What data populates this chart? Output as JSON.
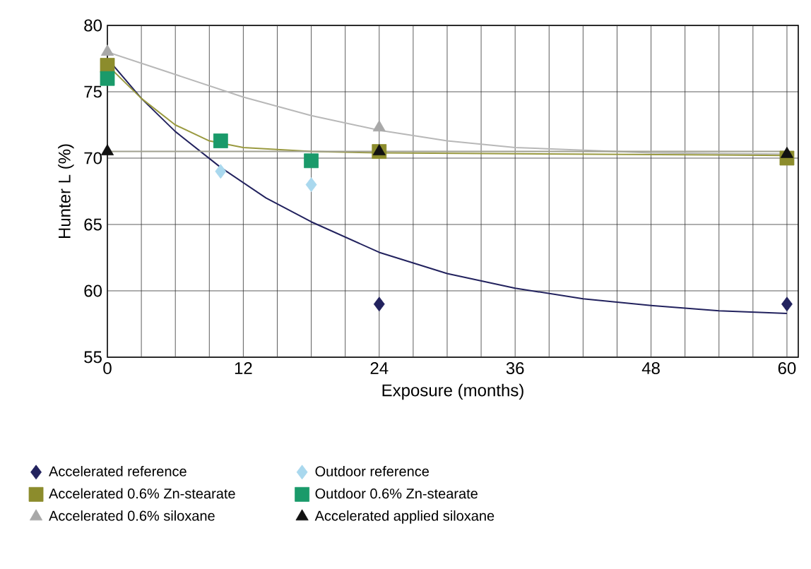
{
  "chart_data": {
    "type": "scatter",
    "xlabel": "Exposure (months)",
    "ylabel": "Hunter L (%)",
    "xlim": [
      0,
      61
    ],
    "ylim": [
      55,
      80
    ],
    "xticks": [
      0,
      12,
      24,
      36,
      48,
      60
    ],
    "yticks": [
      55,
      60,
      65,
      70,
      75,
      80
    ],
    "grid": true,
    "legend": "bottom",
    "series": [
      {
        "name": "Accelerated reference",
        "marker": "diamond",
        "color": "#22225e",
        "x": [
          24,
          60
        ],
        "values": [
          59,
          59
        ]
      },
      {
        "name": "Outdoor reference",
        "marker": "diamond",
        "color": "#a9d8ee",
        "x": [
          10,
          18
        ],
        "values": [
          69,
          68
        ]
      },
      {
        "name": "Accelerated 0.6% Zn-stearate",
        "marker": "square",
        "color": "#8c8c2c",
        "x": [
          0,
          24,
          60
        ],
        "values": [
          77,
          70.5,
          70
        ]
      },
      {
        "name": "Outdoor 0.6% Zn-stearate",
        "marker": "square",
        "color": "#1a9a6a",
        "x": [
          0,
          10,
          18
        ],
        "values": [
          76,
          71.3,
          69.8
        ]
      },
      {
        "name": "Accelerated 0.6% siloxane",
        "marker": "triangle",
        "color": "#a8a8a8",
        "x": [
          0,
          24
        ],
        "values": [
          78,
          72.3
        ]
      },
      {
        "name": "Accelerated applied siloxane",
        "marker": "triangle",
        "color": "#111111",
        "x": [
          0,
          24,
          60
        ],
        "values": [
          70.5,
          70.5,
          70.3
        ]
      },
      {
        "type": "line",
        "color": "#22225e",
        "x": [
          0,
          3,
          6,
          10,
          14,
          18,
          24,
          30,
          36,
          42,
          48,
          54,
          60
        ],
        "values": [
          77.5,
          74.5,
          72,
          69.3,
          67,
          65.2,
          62.9,
          61.3,
          60.2,
          59.4,
          58.9,
          58.5,
          58.3
        ]
      },
      {
        "type": "line",
        "color": "#b8b8b8",
        "x": [
          0,
          6,
          12,
          18,
          24,
          30,
          36,
          48,
          60
        ],
        "values": [
          78,
          76.3,
          74.6,
          73.2,
          72.1,
          71.3,
          70.8,
          70.4,
          70.3
        ]
      },
      {
        "type": "line",
        "color": "#9a9a40",
        "x": [
          0,
          3,
          6,
          9,
          12,
          18,
          24,
          60
        ],
        "values": [
          77,
          74.5,
          72.5,
          71.3,
          70.8,
          70.5,
          70.4,
          70.2
        ]
      },
      {
        "type": "line",
        "color": "#a0a090",
        "x": [
          0,
          60
        ],
        "values": [
          70.5,
          70.5
        ]
      }
    ]
  }
}
